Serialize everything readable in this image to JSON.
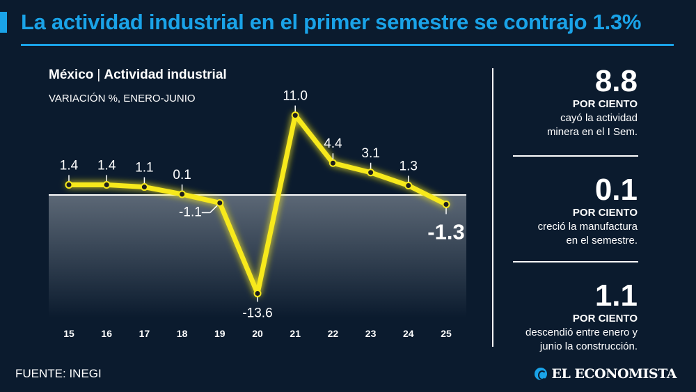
{
  "header": {
    "title": "La actividad industrial en el primer semestre se contrajo 1.3%"
  },
  "chart_data": {
    "type": "line",
    "title": "México",
    "title_part2": "Actividad industrial",
    "subtitle": "VARIACIÓN %, ENERO-JUNIO",
    "categories": [
      "15",
      "16",
      "17",
      "18",
      "19",
      "20",
      "21",
      "22",
      "23",
      "24",
      "25"
    ],
    "values": [
      1.4,
      1.4,
      1.1,
      0.1,
      -1.1,
      -13.6,
      11.0,
      4.4,
      3.1,
      1.3,
      -1.3
    ],
    "value_labels": [
      "1.4",
      "1.4",
      "1.1",
      "0.1",
      "-1.1",
      "-13.6",
      "11.0",
      "4.4",
      "3.1",
      "1.3",
      "-1.3"
    ],
    "highlight_index": 10,
    "ylim": [
      -15,
      12
    ],
    "zero_line": true,
    "grid": false,
    "legend": "none",
    "colors": {
      "line": "#f7e91c",
      "marker": "#1e1e1e",
      "zero_line": "#ffffff",
      "negative_area": "#5c6876"
    }
  },
  "stats": [
    {
      "value": "8.8",
      "unit": "POR CIENTO",
      "line1": "cayó la actividad",
      "line2": "minera en el I Sem."
    },
    {
      "value": "0.1",
      "unit": "POR CIENTO",
      "line1": "creció la manufactura",
      "line2": "en el semestre."
    },
    {
      "value": "1.1",
      "unit": "POR CIENTO",
      "line1": "descendió entre enero y",
      "line2": "junio la construcción."
    }
  ],
  "footer": {
    "source": "FUENTE: INEGI",
    "brand": "EL ECONOMISTA"
  },
  "colors": {
    "background": "#0b1b2e",
    "accent": "#1aa3e8"
  }
}
